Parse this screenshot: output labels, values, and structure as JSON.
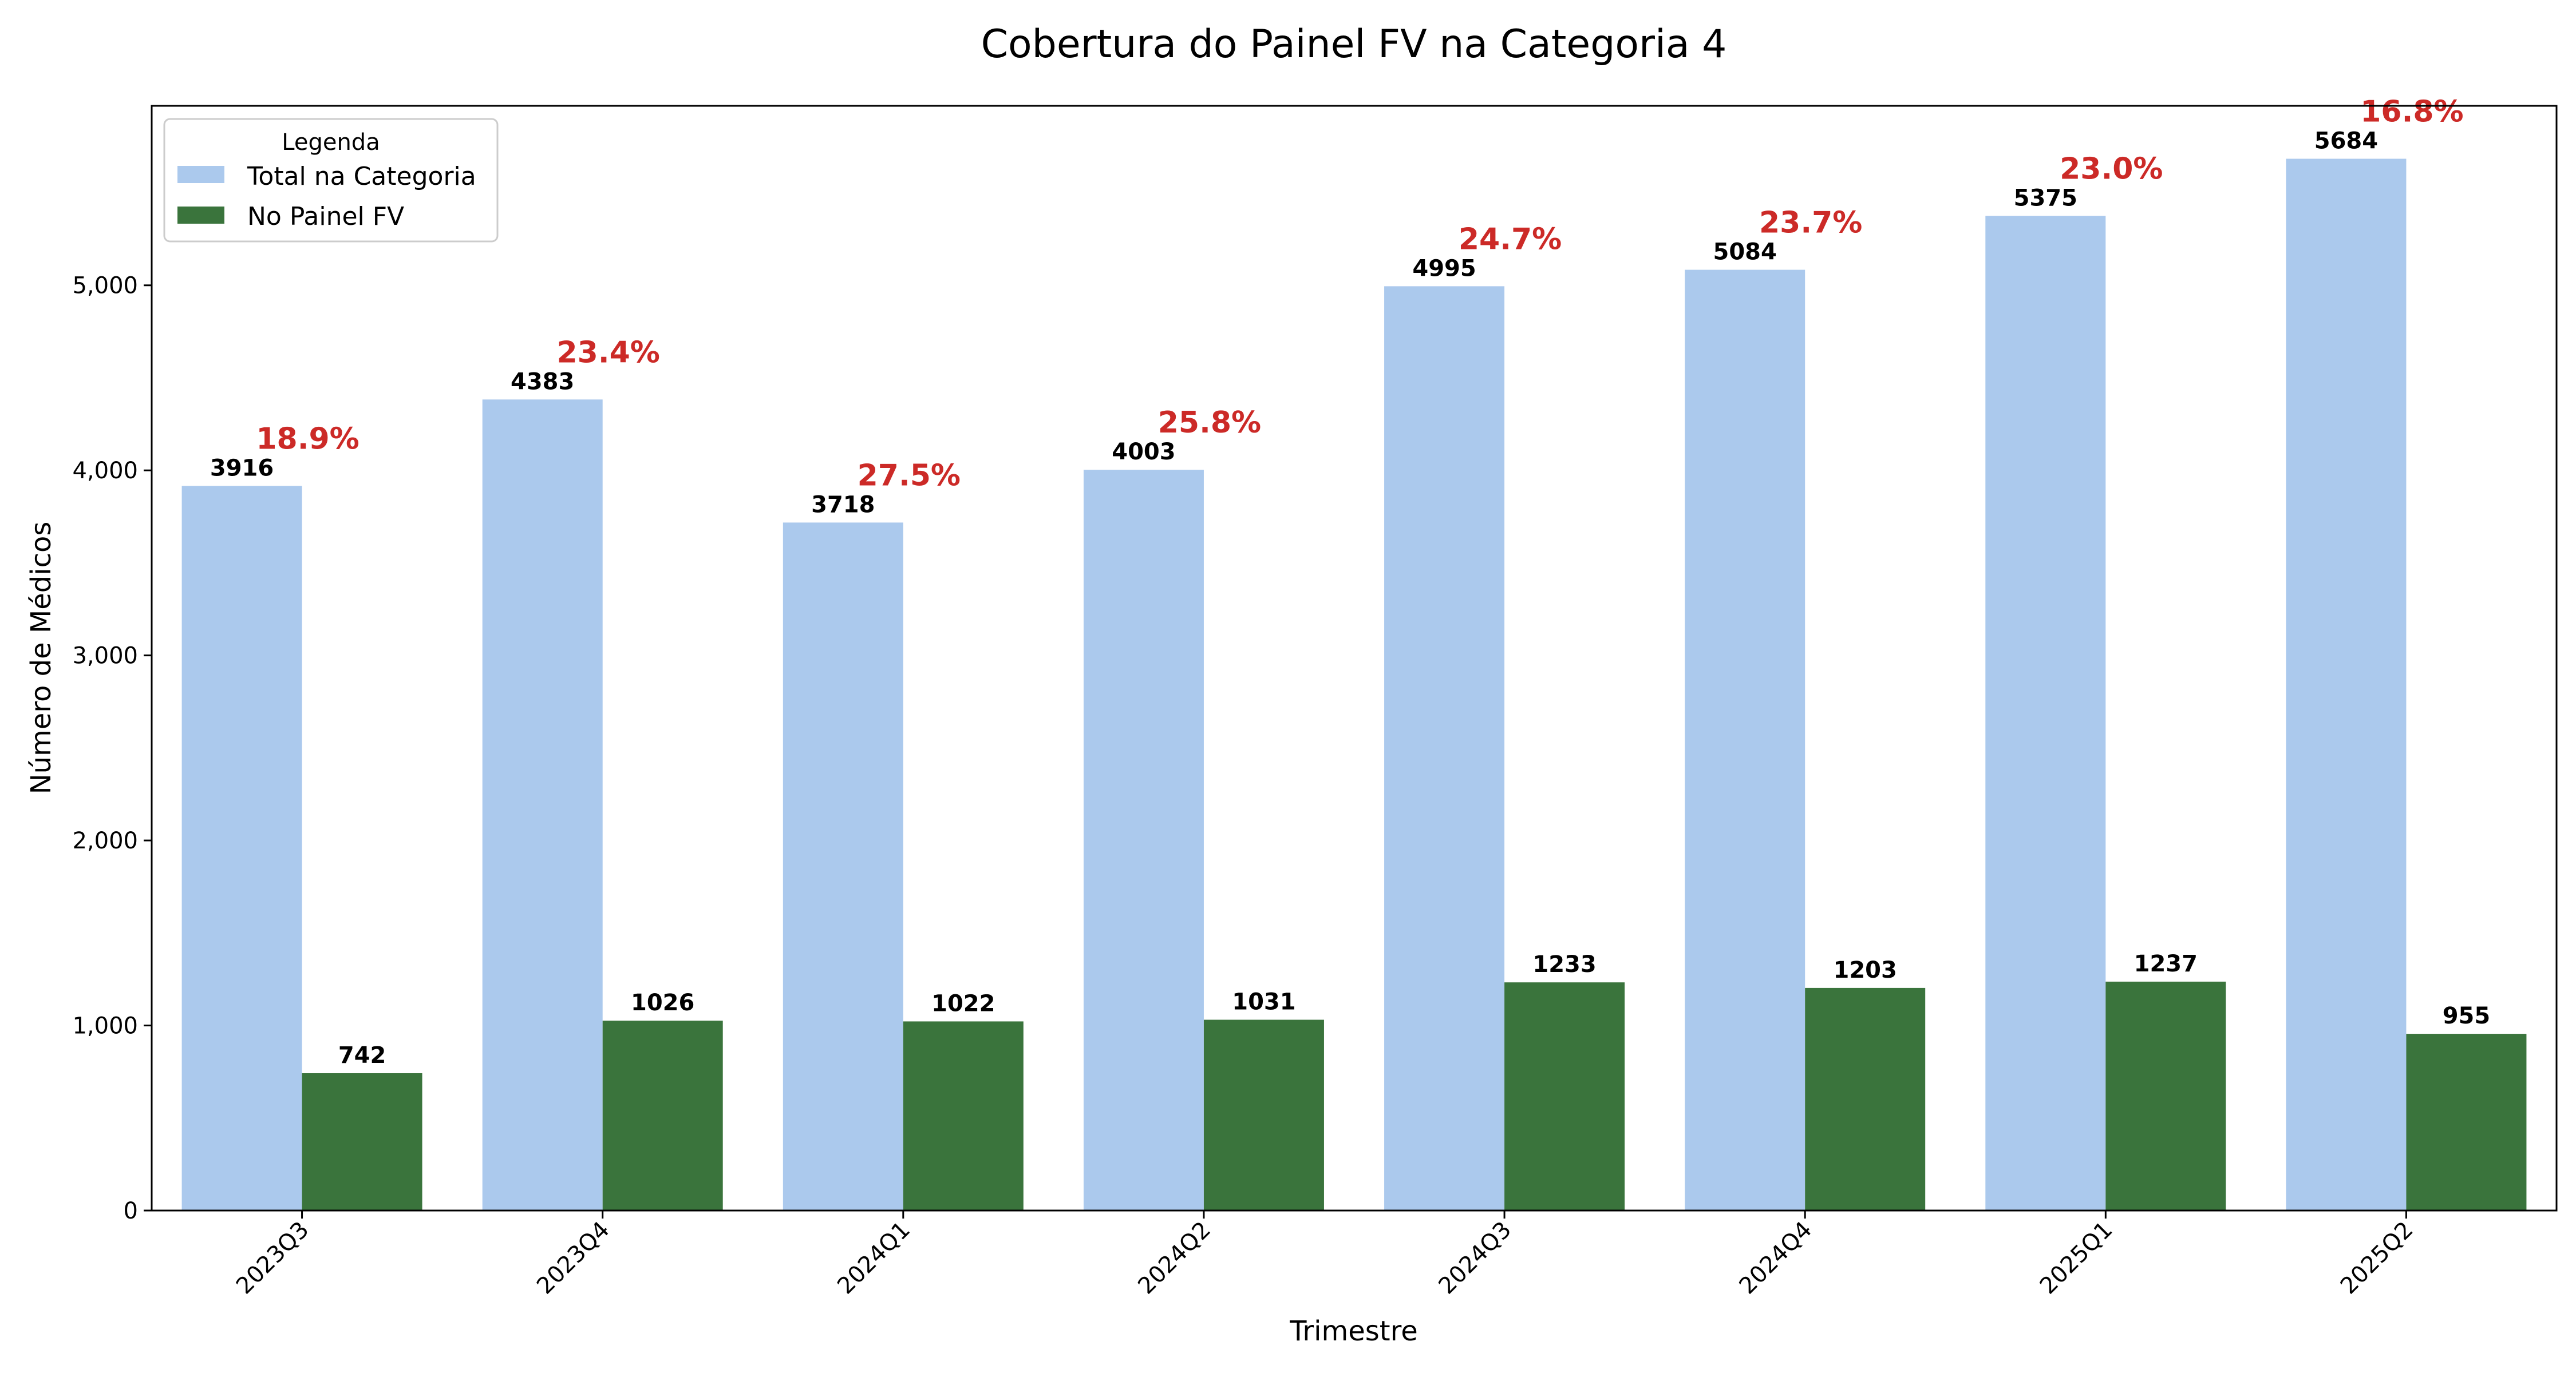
{
  "chart_data": {
    "type": "bar",
    "title": "Cobertura do Painel FV na Categoria 4",
    "xlabel": "Trimestre",
    "ylabel": "Número de Médicos",
    "categories": [
      "2023Q3",
      "2023Q4",
      "2024Q1",
      "2024Q2",
      "2024Q3",
      "2024Q4",
      "2025Q1",
      "2025Q2"
    ],
    "series": [
      {
        "name": "Total na Categoria",
        "color": "#abc9ed",
        "values": [
          3916,
          4383,
          3718,
          4003,
          4995,
          5084,
          5375,
          5684
        ]
      },
      {
        "name": "No Painel FV",
        "color": "#3a743c",
        "values": [
          742,
          1026,
          1022,
          1031,
          1233,
          1203,
          1237,
          955
        ]
      }
    ],
    "percent_labels": [
      "18.9%",
      "23.4%",
      "27.5%",
      "25.8%",
      "24.7%",
      "23.7%",
      "23.0%",
      "16.8%"
    ],
    "percent_color": "#cc2a27",
    "ylim": [
      0,
      5970
    ],
    "yticks": [
      0,
      1000,
      2000,
      3000,
      4000,
      5000
    ],
    "ytick_labels": [
      "0",
      "1,000",
      "2,000",
      "3,000",
      "4,000",
      "5,000"
    ],
    "legend": {
      "title": "Legenda",
      "position": "top-left"
    },
    "grid": false
  }
}
